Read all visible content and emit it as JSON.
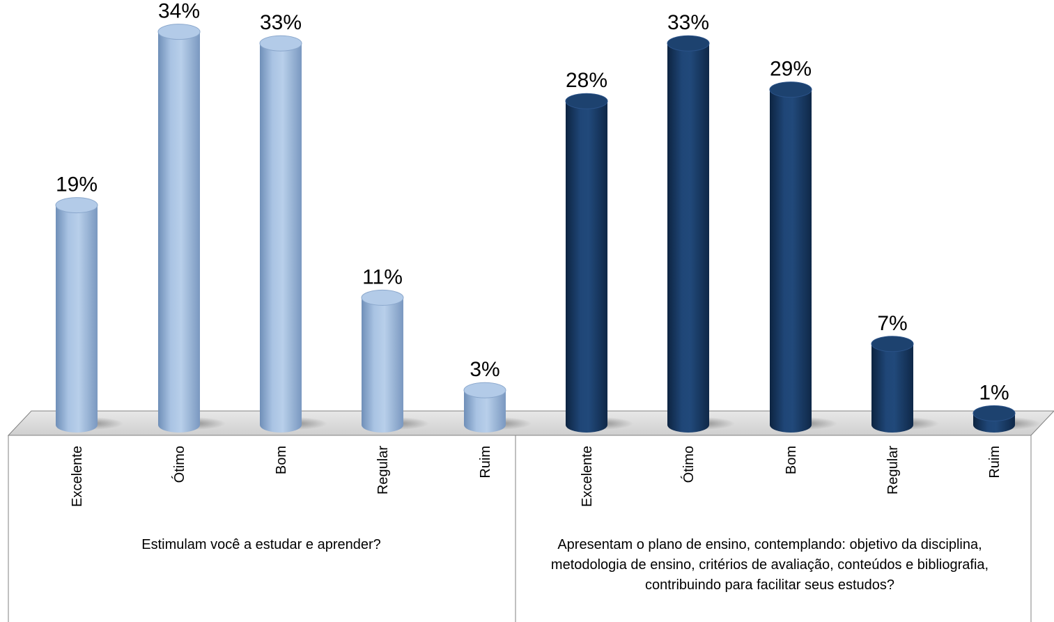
{
  "chart_data": {
    "type": "bar",
    "categories": [
      "Excelente",
      "Ótimo",
      "Bom",
      "Regular",
      "Ruim"
    ],
    "groups": [
      {
        "label": "Estimulam você a estudar e aprender?",
        "values": [
          19,
          34,
          33,
          11,
          3
        ],
        "labels": [
          "19%",
          "34%",
          "33%",
          "11%",
          "3%"
        ],
        "color": "#95b3d7"
      },
      {
        "label": "Apresentam o plano de ensino, contemplando: objetivo da disciplina, metodologia de ensino, critérios de avaliação, conteúdos e bibliografia, contribuindo para facilitar seus estudos?",
        "values": [
          28,
          33,
          29,
          7,
          1
        ],
        "labels": [
          "28%",
          "33%",
          "29%",
          "7%",
          "1%"
        ],
        "color": "#17375e"
      }
    ],
    "style": "3d-cylinder",
    "grid": false,
    "legend": "none"
  }
}
